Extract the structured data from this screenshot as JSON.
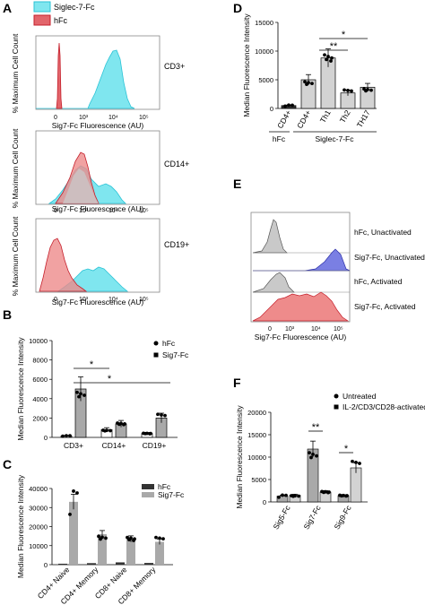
{
  "panel_letters": {
    "a": "A",
    "b": "B",
    "c": "C",
    "d": "D",
    "e": "E",
    "f": "F"
  },
  "colors": {
    "siglec": "#7fe6ef",
    "siglec_edge": "#2bc3d6",
    "hfc": "#e2656b",
    "hfc_edge": "#c51f2b",
    "grey_fill": "#c9c9c9",
    "blue_fill": "#7a7fe3",
    "red_fill": "#ee8b8b",
    "bar_grey": "#a9a9a9",
    "bar_dark": "#333333",
    "bar_light": "#d3d3d3"
  },
  "chart_data": [
    {
      "id": "A",
      "type": "area",
      "legend": [
        "Siglec-7-Fc",
        "hFc"
      ],
      "ylabel": "% Maximum Cell Count",
      "xlabel": "Sig7-Fc Fluorescence (AU)",
      "xticks": [
        "0",
        "10³",
        "10⁴",
        "10⁵"
      ],
      "subpanels": [
        {
          "label": "CD3+",
          "xlabel": "Sig7-Fc Fluorescence (AU)",
          "xticks": [
            "0",
            "10³",
            "10⁴",
            "10⁵"
          ]
        },
        {
          "label": "CD14+",
          "xlabel": "Sig7-Fc Fluorescence (AU)",
          "xticks": [
            "0",
            "10³",
            "10⁴",
            "10⁵"
          ]
        },
        {
          "label": "CD19+",
          "xlabel": "Sig7-Fc Fluorescence (AU)",
          "xticks": [
            "0",
            "10³",
            "10⁴",
            "10⁵"
          ]
        }
      ]
    },
    {
      "id": "B",
      "type": "bar",
      "ylabel": "Median Fluorescence Intensity",
      "categories": [
        "CD3+",
        "CD14+",
        "CD19+"
      ],
      "ylim": [
        0,
        10000
      ],
      "yticks": [
        "0",
        "2000",
        "4000",
        "6000",
        "8000",
        "10000"
      ],
      "legend": [
        "hFc",
        "Sig7-Fc"
      ],
      "series": [
        {
          "name": "hFc",
          "values": [
            150,
            800,
            400
          ]
        },
        {
          "name": "Sig7-Fc",
          "values": [
            5000,
            1400,
            2000
          ]
        }
      ],
      "annotations": [
        "*",
        "*"
      ]
    },
    {
      "id": "C",
      "type": "bar",
      "ylabel": "Median Fluorescence Intensity",
      "categories": [
        "CD4+ Naive",
        "CD4+ Memory",
        "CD8+ Naive",
        "CD8+ Memory"
      ],
      "ylim": [
        0,
        40000
      ],
      "yticks": [
        "0",
        "10000",
        "20000",
        "30000",
        "40000"
      ],
      "legend": [
        "hFc",
        "Sig7-Fc"
      ],
      "series": [
        {
          "name": "hFc",
          "values": [
            500,
            800,
            1200,
            900
          ]
        },
        {
          "name": "Sig7-Fc",
          "values": [
            33000,
            16000,
            13500,
            12000
          ]
        }
      ]
    },
    {
      "id": "D",
      "type": "bar",
      "ylabel": "Median Fluorescence Intensity",
      "categories": [
        "CD4+",
        "CD4+",
        "Th1",
        "Th2",
        "TH17"
      ],
      "groups": [
        "hFc",
        "Siglec-7-Fc"
      ],
      "ylim": [
        0,
        15000
      ],
      "yticks": [
        "0",
        "5000",
        "10000",
        "15000"
      ],
      "values": [
        500,
        5000,
        8800,
        2700,
        3700
      ],
      "annotations": [
        "**",
        "*"
      ]
    },
    {
      "id": "E",
      "type": "area",
      "xlabel": "Sig7-Fc Fluorescence (AU)",
      "xticks": [
        "0",
        "10³",
        "10⁴",
        "10⁵"
      ],
      "rows": [
        "hFc, Unactivated",
        "Sig7-Fc, Unactivated",
        "hFc, Activated",
        "Sig7-Fc, Activated"
      ]
    },
    {
      "id": "F",
      "type": "bar",
      "ylabel": "Median Fluorescence Intensity",
      "categories": [
        "Sig5-Fc",
        "Sig7-Fc",
        "Sig9-Fc"
      ],
      "ylim": [
        0,
        20000
      ],
      "yticks": [
        "0",
        "5000",
        "10000",
        "15000",
        "20000"
      ],
      "legend": [
        "Untreated",
        "IL-2/CD3/CD28-activated"
      ],
      "series": [
        {
          "name": "Untreated",
          "values": [
            1300,
            11800,
            1400
          ]
        },
        {
          "name": "IL-2/CD3/CD28-activated",
          "values": [
            1500,
            2200,
            7600
          ]
        }
      ],
      "annotations": [
        "**",
        "*"
      ]
    }
  ]
}
